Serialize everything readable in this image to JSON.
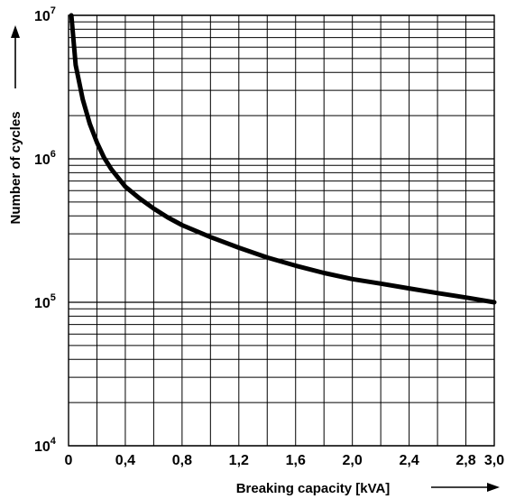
{
  "chart_data": {
    "type": "line",
    "xlabel": "Breaking capacity [kVA]",
    "ylabel": "Number of cycles",
    "xlim": [
      0,
      3.0
    ],
    "ylim": [
      10000,
      10000000
    ],
    "y_scale": "log",
    "grid": true,
    "x_ticks": [
      {
        "value": 0,
        "label": "0"
      },
      {
        "value": 0.4,
        "label": "0,4"
      },
      {
        "value": 0.8,
        "label": "0,8"
      },
      {
        "value": 1.2,
        "label": "1,2"
      },
      {
        "value": 1.6,
        "label": "1,6"
      },
      {
        "value": 2.0,
        "label": "2,0"
      },
      {
        "value": 2.4,
        "label": "2,4"
      },
      {
        "value": 2.8,
        "label": "2,8"
      },
      {
        "value": 3.0,
        "label": "3,0"
      }
    ],
    "y_ticks": [
      {
        "value": 10000,
        "base": "10",
        "exp": "4"
      },
      {
        "value": 100000,
        "base": "10",
        "exp": "5"
      },
      {
        "value": 1000000,
        "base": "10",
        "exp": "6"
      },
      {
        "value": 10000000,
        "base": "10",
        "exp": "7"
      }
    ],
    "series": [
      {
        "x": [
          0.02,
          0.05,
          0.1,
          0.15,
          0.2,
          0.25,
          0.3,
          0.4,
          0.5,
          0.6,
          0.7,
          0.8,
          1.0,
          1.2,
          1.4,
          1.6,
          1.8,
          2.0,
          2.2,
          2.4,
          2.6,
          2.8,
          3.0
        ],
        "y": [
          10000000,
          4500000,
          2600000,
          1750000,
          1300000,
          1020000,
          850000,
          640000,
          530000,
          450000,
          390000,
          345000,
          285000,
          240000,
          205000,
          180000,
          160000,
          145000,
          135000,
          125000,
          116000,
          108000,
          100000
        ]
      }
    ],
    "colors": {
      "line": "#000000",
      "grid": "#000000"
    }
  }
}
